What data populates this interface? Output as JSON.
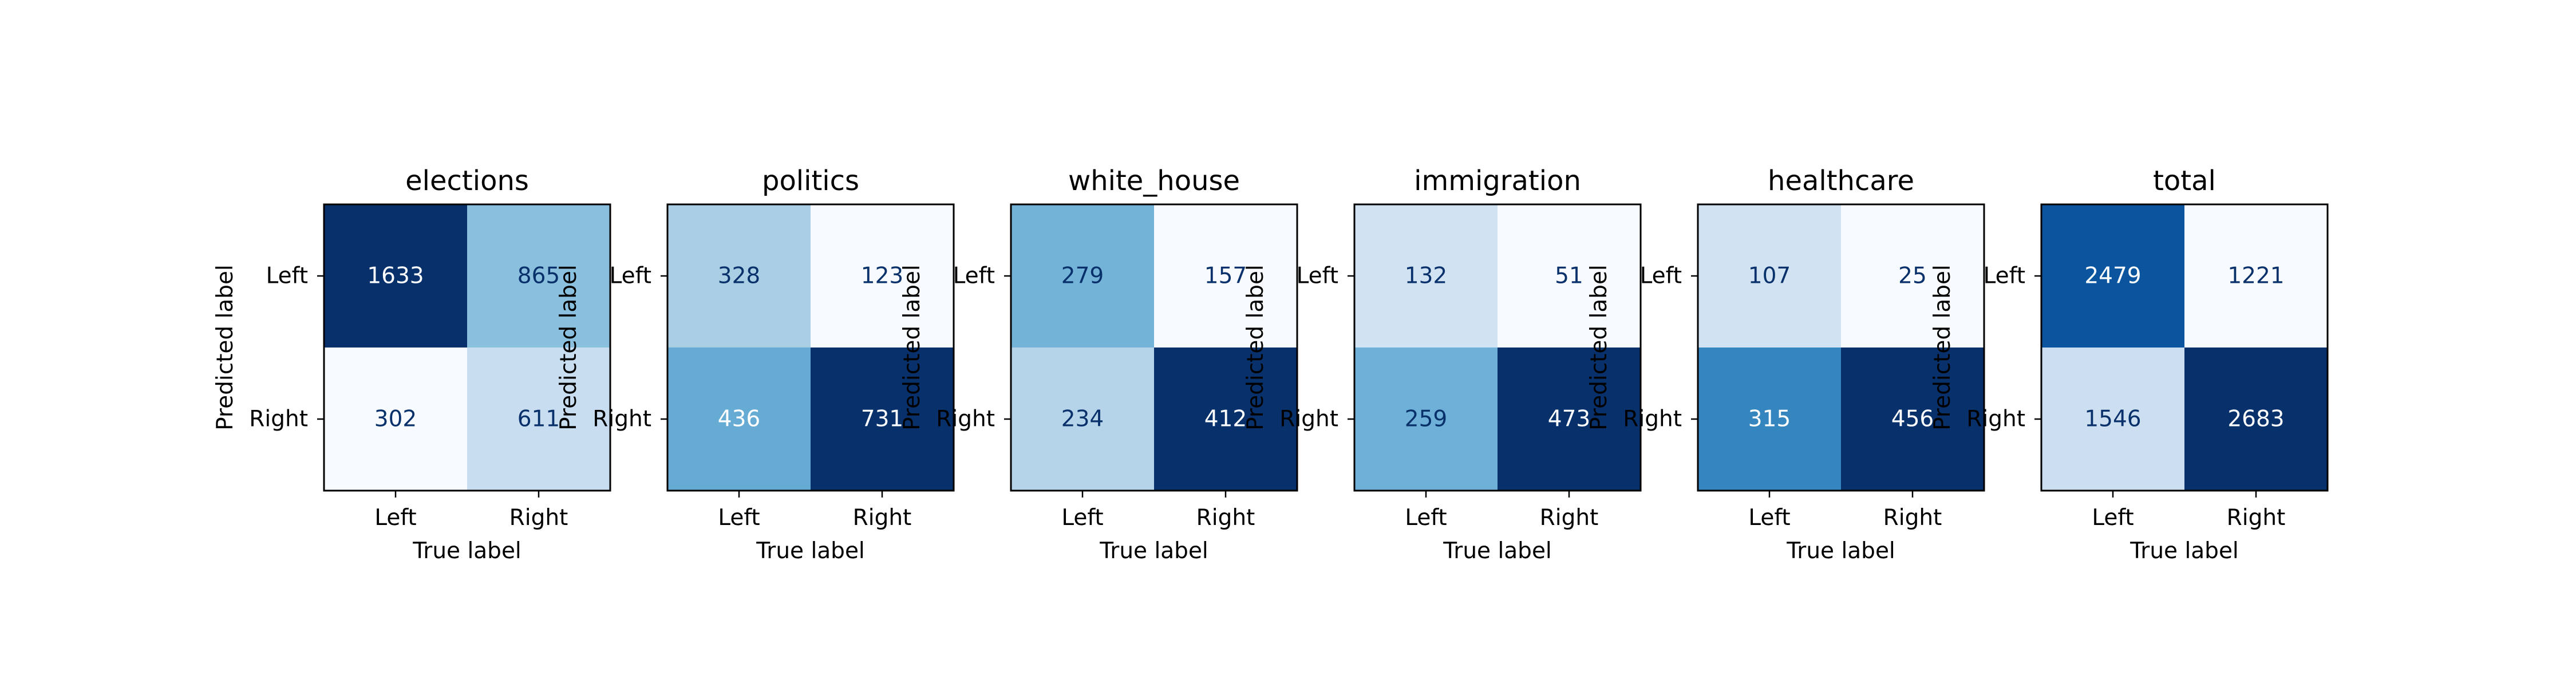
{
  "chart_data": [
    {
      "type": "heatmap",
      "title": "elections",
      "xlabel": "True label",
      "ylabel": "Predicted label",
      "x_tick_labels": [
        "Left",
        "Right"
      ],
      "y_tick_labels": [
        "Left",
        "Right"
      ],
      "matrix": [
        [
          1633,
          865
        ],
        [
          302,
          611
        ]
      ],
      "colormap": "Blues"
    },
    {
      "type": "heatmap",
      "title": "politics",
      "xlabel": "True label",
      "ylabel": "Predicted label",
      "x_tick_labels": [
        "Left",
        "Right"
      ],
      "y_tick_labels": [
        "Left",
        "Right"
      ],
      "matrix": [
        [
          328,
          123
        ],
        [
          436,
          731
        ]
      ],
      "colormap": "Blues"
    },
    {
      "type": "heatmap",
      "title": "white_house",
      "xlabel": "True label",
      "ylabel": "Predicted label",
      "x_tick_labels": [
        "Left",
        "Right"
      ],
      "y_tick_labels": [
        "Left",
        "Right"
      ],
      "matrix": [
        [
          279,
          157
        ],
        [
          234,
          412
        ]
      ],
      "colormap": "Blues"
    },
    {
      "type": "heatmap",
      "title": "immigration",
      "xlabel": "True label",
      "ylabel": "Predicted label",
      "x_tick_labels": [
        "Left",
        "Right"
      ],
      "y_tick_labels": [
        "Left",
        "Right"
      ],
      "matrix": [
        [
          132,
          51
        ],
        [
          259,
          473
        ]
      ],
      "colormap": "Blues"
    },
    {
      "type": "heatmap",
      "title": "healthcare",
      "xlabel": "True label",
      "ylabel": "Predicted label",
      "x_tick_labels": [
        "Left",
        "Right"
      ],
      "y_tick_labels": [
        "Left",
        "Right"
      ],
      "matrix": [
        [
          107,
          25
        ],
        [
          315,
          456
        ]
      ],
      "colormap": "Blues"
    },
    {
      "type": "heatmap",
      "title": "total",
      "xlabel": "True label",
      "ylabel": "Predicted label",
      "x_tick_labels": [
        "Left",
        "Right"
      ],
      "y_tick_labels": [
        "Left",
        "Right"
      ],
      "matrix": [
        [
          2479,
          1221
        ],
        [
          1546,
          2683
        ]
      ],
      "colormap": "Blues"
    }
  ]
}
